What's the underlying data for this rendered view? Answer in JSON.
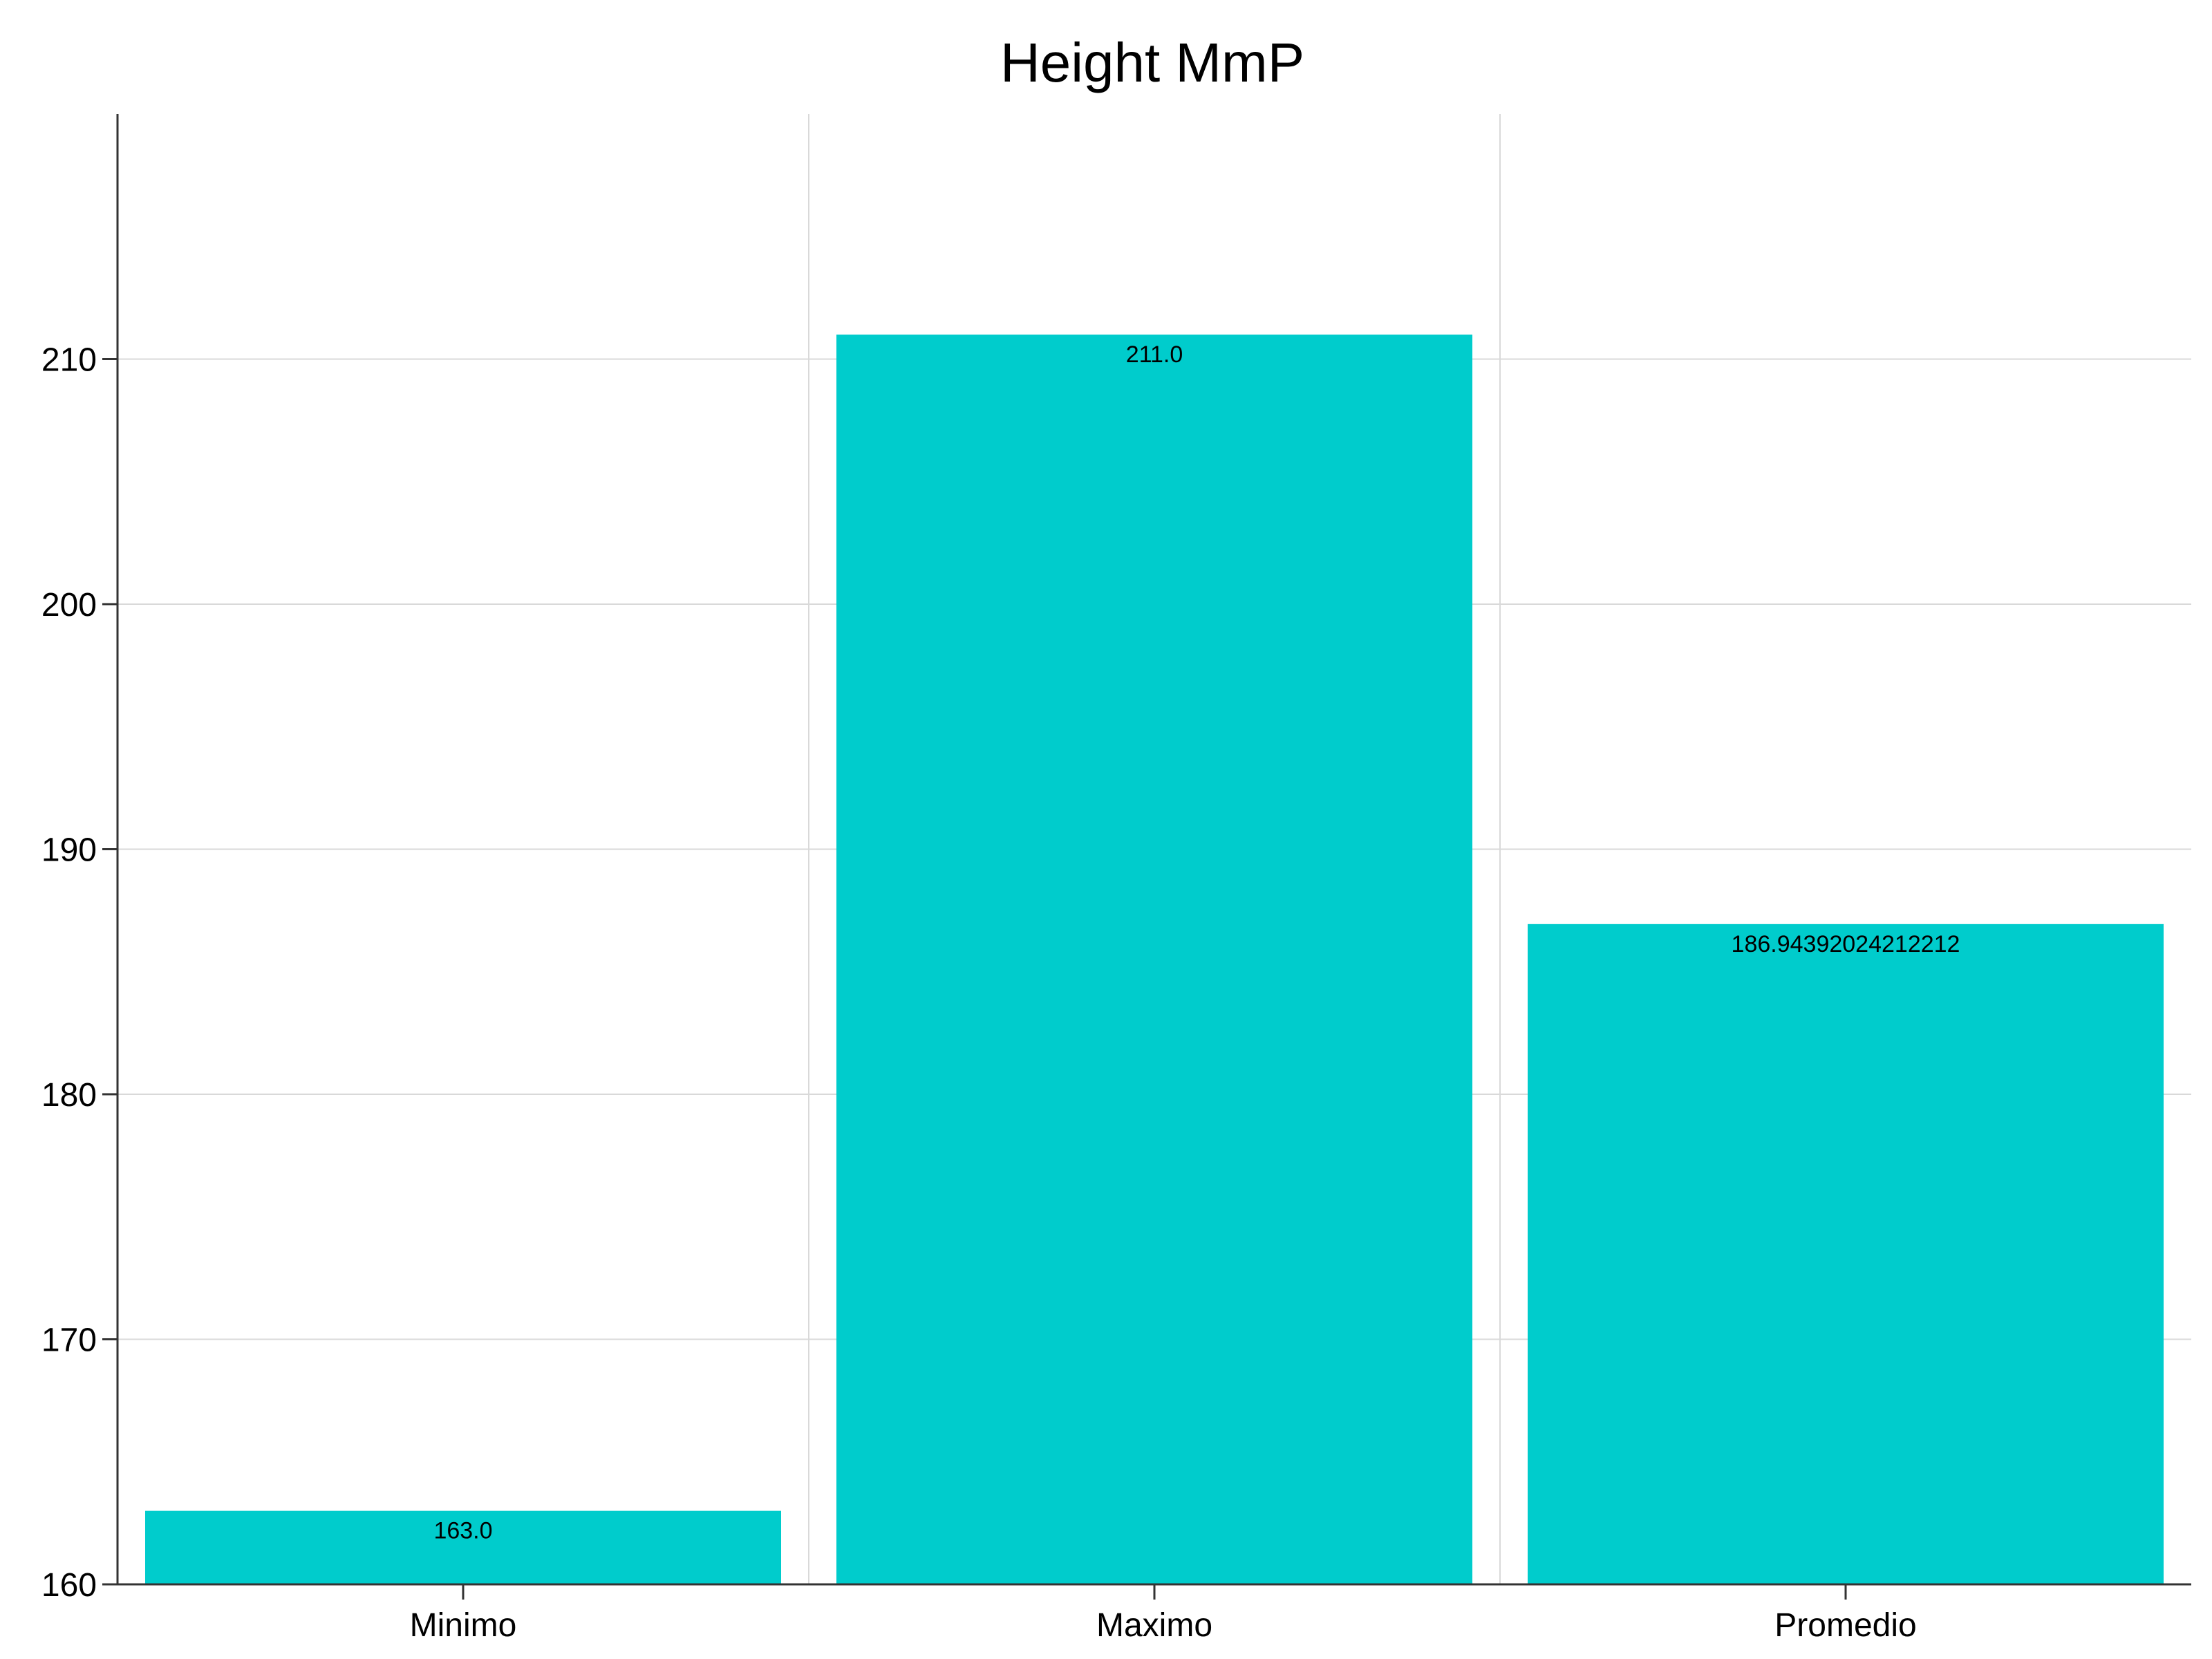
{
  "chart_data": {
    "type": "bar",
    "title": "Height MmP",
    "xlabel": "",
    "ylabel": "",
    "categories": [
      "Minimo",
      "Maximo",
      "Promedio"
    ],
    "values": [
      163.0,
      211.0,
      186.94392024212212
    ],
    "data_labels": [
      "163.0",
      "211.0",
      "186.94392024212212"
    ],
    "ylim": [
      160,
      220
    ],
    "yticks": [
      160,
      170,
      180,
      190,
      200,
      210
    ],
    "ytick_labels": [
      "160",
      "170",
      "180",
      "190",
      "200",
      "210"
    ],
    "grid": true,
    "legend": "none",
    "bar_color": "#00cccc",
    "grid_color": "#d9d9d9",
    "axis_color": "#333333"
  }
}
